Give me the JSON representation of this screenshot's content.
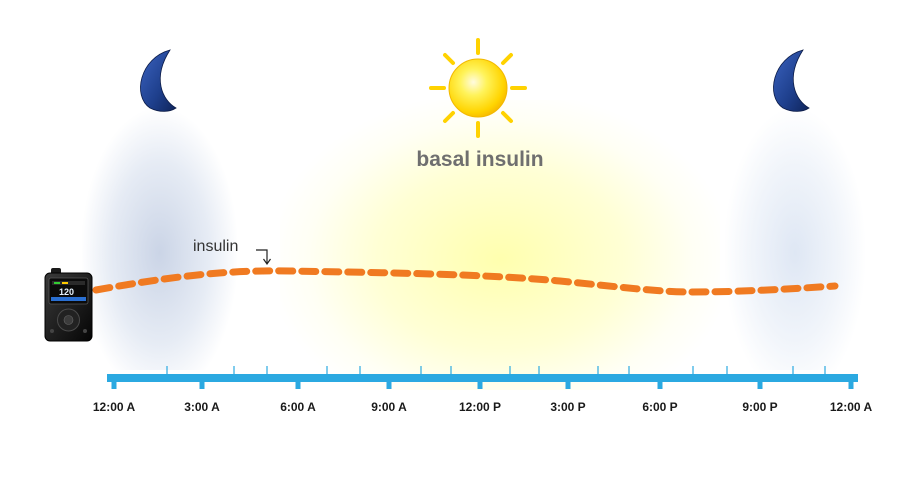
{
  "diagram": {
    "title": "basal insulin",
    "curve_label": "insulin",
    "icons": [
      "moon-icon",
      "sun-icon",
      "moon-icon",
      "insulin-pump-icon"
    ],
    "pump_screen_value": "120",
    "axis": {
      "ticks": [
        "12:00 A",
        "3:00 A",
        "6:00 A",
        "9:00 A",
        "12:00 P",
        "3:00 P",
        "6:00 P",
        "9:00 P",
        "12:00 A"
      ]
    },
    "colors": {
      "axis": "#2ba9e1",
      "curve": "#f07a21",
      "title": "#6f6f6f",
      "sun": "#ffd200",
      "moon": "#1e3f8c"
    }
  }
}
